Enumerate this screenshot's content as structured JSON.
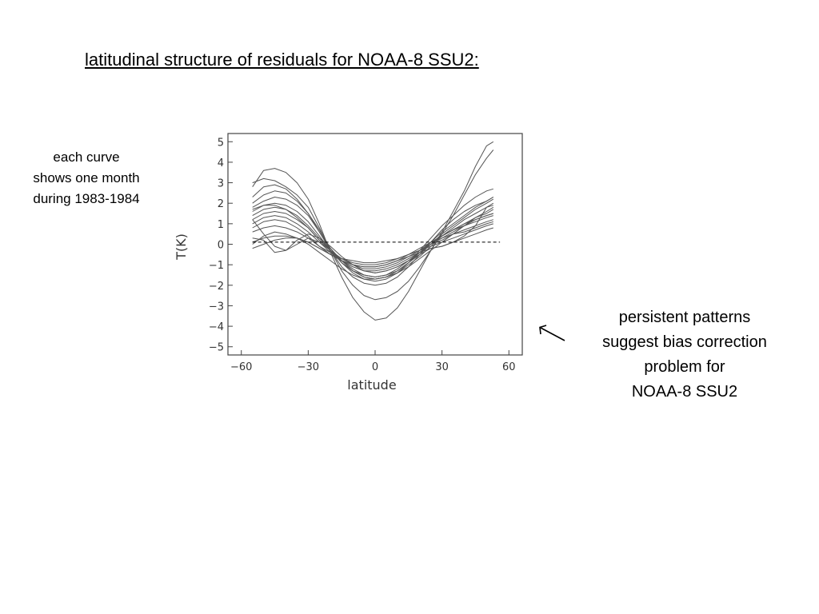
{
  "slide": {
    "title": "latitudinal structure of residuals for NOAA-8 SSU2:",
    "left_note": [
      "each curve",
      "shows one month",
      "during 1983-1984"
    ],
    "right_note": [
      "persistent patterns",
      "suggest bias correction",
      "problem for",
      "NOAA-8 SSU2"
    ]
  },
  "chart_data": {
    "type": "line",
    "title": "",
    "xlabel": "latitude",
    "ylabel": "T(K)",
    "xlim": [
      -66,
      66
    ],
    "ylim": [
      -5.4,
      5.4
    ],
    "xticks": [
      -60,
      -30,
      0,
      30,
      60
    ],
    "yticks": [
      -5,
      -4,
      -3,
      -2,
      -1,
      0,
      1,
      2,
      3,
      4,
      5
    ],
    "grid": false,
    "legend": "none",
    "reference_line": {
      "y": 0.1,
      "style": "dashed"
    },
    "line_color": "#555555",
    "x": [
      -55,
      -50,
      -45,
      -40,
      -35,
      -30,
      -25,
      -20,
      -15,
      -10,
      -5,
      0,
      5,
      10,
      15,
      20,
      25,
      30,
      35,
      40,
      45,
      50,
      53
    ],
    "series": [
      {
        "values": [
          2.8,
          3.6,
          3.7,
          3.5,
          3.0,
          2.2,
          1.0,
          -0.4,
          -1.6,
          -2.6,
          -3.3,
          -3.7,
          -3.6,
          -3.1,
          -2.3,
          -1.3,
          -0.3,
          0.6,
          1.6,
          2.6,
          3.8,
          4.8,
          5.0
        ]
      },
      {
        "values": [
          3.0,
          3.2,
          3.1,
          2.8,
          2.4,
          1.8,
          0.8,
          -0.3,
          -1.3,
          -2.0,
          -2.5,
          -2.7,
          -2.6,
          -2.3,
          -1.8,
          -1.1,
          -0.3,
          0.5,
          1.4,
          2.4,
          3.4,
          4.2,
          4.6
        ]
      },
      {
        "values": [
          2.0,
          2.4,
          2.6,
          2.5,
          2.1,
          1.5,
          0.7,
          -0.2,
          -0.9,
          -1.4,
          -1.7,
          -1.8,
          -1.7,
          -1.4,
          -0.9,
          -0.3,
          0.3,
          0.9,
          1.4,
          1.9,
          2.3,
          2.6,
          2.7
        ]
      },
      {
        "values": [
          1.8,
          2.1,
          2.3,
          2.2,
          1.9,
          1.4,
          0.6,
          -0.2,
          -0.8,
          -1.3,
          -1.6,
          -1.7,
          -1.6,
          -1.3,
          -0.9,
          -0.4,
          0.1,
          0.6,
          1.0,
          1.4,
          1.8,
          2.1,
          2.3
        ]
      },
      {
        "values": [
          1.6,
          1.9,
          2.0,
          1.9,
          1.6,
          1.1,
          0.4,
          -0.3,
          -0.9,
          -1.3,
          -1.6,
          -1.7,
          -1.6,
          -1.4,
          -1.0,
          -0.6,
          -0.1,
          0.4,
          0.8,
          1.2,
          1.5,
          1.8,
          2.0
        ]
      },
      {
        "values": [
          1.4,
          1.7,
          1.8,
          1.7,
          1.4,
          0.9,
          0.3,
          -0.3,
          -0.9,
          -1.3,
          -1.5,
          -1.6,
          -1.5,
          -1.3,
          -0.9,
          -0.5,
          0.0,
          0.5,
          0.9,
          1.3,
          1.7,
          2.0,
          2.2
        ]
      },
      {
        "values": [
          1.2,
          1.5,
          1.6,
          1.5,
          1.2,
          0.8,
          0.2,
          -0.3,
          -0.8,
          -1.1,
          -1.3,
          -1.4,
          -1.3,
          -1.1,
          -0.8,
          -0.4,
          0.0,
          0.4,
          0.7,
          1.0,
          1.3,
          1.5,
          1.7
        ]
      },
      {
        "values": [
          1.7,
          1.9,
          1.9,
          1.7,
          1.3,
          0.8,
          0.2,
          -0.3,
          -0.7,
          -1.0,
          -1.2,
          -1.2,
          -1.1,
          -0.9,
          -0.6,
          -0.3,
          0.1,
          0.4,
          0.7,
          0.9,
          1.1,
          1.3,
          1.4
        ]
      },
      {
        "values": [
          1.0,
          1.3,
          1.4,
          1.3,
          1.0,
          0.6,
          0.1,
          -0.4,
          -0.8,
          -1.1,
          -1.3,
          -1.3,
          -1.2,
          -1.0,
          -0.7,
          -0.4,
          0.0,
          0.3,
          0.6,
          0.9,
          1.2,
          1.4,
          1.5
        ]
      },
      {
        "values": [
          0.8,
          1.1,
          1.2,
          1.1,
          0.8,
          0.4,
          -0.1,
          -0.5,
          -0.8,
          -1.0,
          -1.1,
          -1.1,
          -1.0,
          -0.8,
          -0.5,
          -0.2,
          0.1,
          0.4,
          0.7,
          1.0,
          1.2,
          1.4,
          1.5
        ]
      },
      {
        "values": [
          0.6,
          0.8,
          0.9,
          0.8,
          0.6,
          0.3,
          -0.1,
          -0.4,
          -0.7,
          -0.9,
          -1.0,
          -1.0,
          -0.9,
          -0.7,
          -0.5,
          -0.3,
          0.0,
          0.2,
          0.5,
          0.7,
          0.9,
          1.1,
          1.2
        ]
      },
      {
        "values": [
          0.1,
          0.3,
          0.4,
          0.4,
          0.3,
          0.1,
          -0.2,
          -0.5,
          -0.7,
          -0.8,
          -0.9,
          -0.9,
          -0.8,
          -0.7,
          -0.5,
          -0.3,
          -0.1,
          0.1,
          0.3,
          0.5,
          0.7,
          0.9,
          1.0
        ]
      },
      {
        "values": [
          -0.2,
          0.0,
          0.2,
          0.3,
          0.3,
          0.1,
          -0.2,
          -0.5,
          -0.8,
          -1.0,
          -1.1,
          -1.1,
          -1.0,
          -0.8,
          -0.6,
          -0.4,
          -0.2,
          -0.1,
          0.1,
          0.3,
          0.5,
          0.7,
          0.8
        ]
      },
      {
        "values": [
          1.2,
          0.5,
          -0.1,
          -0.3,
          0.0,
          0.3,
          0.1,
          -0.3,
          -0.8,
          -1.2,
          -1.5,
          -1.6,
          -1.5,
          -1.2,
          -0.8,
          -0.4,
          0.0,
          0.3,
          0.5,
          0.6,
          0.8,
          1.0,
          1.1
        ]
      },
      {
        "values": [
          0.3,
          0.2,
          -0.4,
          -0.3,
          0.2,
          0.5,
          0.3,
          -0.1,
          -0.6,
          -1.0,
          -1.3,
          -1.4,
          -1.3,
          -1.1,
          -0.8,
          -0.5,
          -0.2,
          -0.1,
          0.1,
          0.4,
          0.9,
          1.8,
          1.9
        ]
      },
      {
        "values": [
          0.0,
          0.4,
          0.6,
          0.5,
          0.3,
          0.0,
          -0.4,
          -0.8,
          -1.2,
          -1.5,
          -1.7,
          -1.7,
          -1.6,
          -1.4,
          -1.1,
          -0.7,
          -0.3,
          0.1,
          0.5,
          0.9,
          1.3,
          1.6,
          1.8
        ]
      },
      {
        "values": [
          2.3,
          2.8,
          2.9,
          2.7,
          2.2,
          1.5,
          0.6,
          -0.3,
          -1.1,
          -1.6,
          -1.9,
          -2.0,
          -1.9,
          -1.6,
          -1.1,
          -0.5,
          0.1,
          0.7,
          1.2,
          1.6,
          1.9,
          2.1,
          2.3
        ]
      }
    ]
  }
}
